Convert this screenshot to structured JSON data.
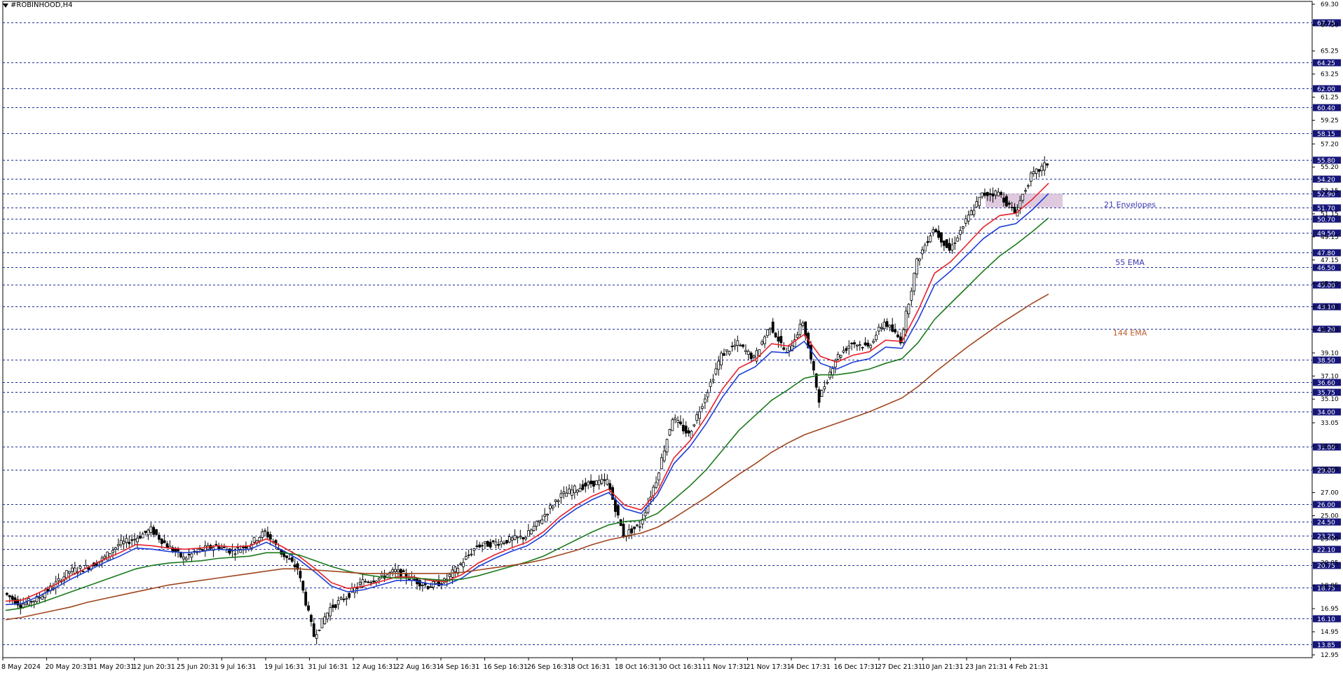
{
  "window": {
    "title": "#ROBINHOOD,H4"
  },
  "chart_data": {
    "type": "line",
    "symbol": "#ROBINHOOD",
    "timeframe": "H4",
    "ylim": [
      12.95,
      69.3
    ],
    "grid": "horizontal dashed at level lines",
    "axis_ticks": [
      "69.30",
      "67.50",
      "65.25",
      "63.25",
      "61.25",
      "59.25",
      "57.20",
      "55.20",
      "53.15",
      "51.15",
      "49.15",
      "47.15",
      "45.10",
      "43.10",
      "41.10",
      "39.10",
      "37.10",
      "35.10",
      "33.05",
      "31.05",
      "29.05",
      "27.00",
      "25.00",
      "23.00",
      "20.95",
      "18.95",
      "16.95",
      "14.95",
      "12.95"
    ],
    "level_labels": [
      "67.75",
      "64.25",
      "62.00",
      "60.40",
      "58.15",
      "55.80",
      "54.20",
      "52.90",
      "51.70",
      "50.70",
      "49.50",
      "47.80",
      "46.50",
      "45.00",
      "43.10",
      "41.20",
      "38.50",
      "36.60",
      "35.75",
      "34.00",
      "31.00",
      "29.00",
      "26.00",
      "24.50",
      "23.25",
      "22.10",
      "20.75",
      "18.75",
      "16.10",
      "13.85"
    ],
    "x_labels": [
      "8 May 2024",
      "20 May 20:31",
      "31 May 20:31",
      "12 Jun 20:31",
      "25 Jun 20:31",
      "9 Jul 16:31",
      "19 Jul 16:31",
      "31 Jul 16:31",
      "12 Aug 16:31",
      "22 Aug 16:31",
      "4 Sep 16:31",
      "16 Sep 16:31",
      "26 Sep 16:31",
      "8 Oct 16:31",
      "18 Oct 16:31",
      "30 Oct 16:31",
      "11 Nov 17:31",
      "21 Nov 17:31",
      "4 Dec 17:31",
      "16 Dec 17:31",
      "27 Dec 21:31",
      "10 Jan 21:31",
      "23 Jan 21:31",
      "4 Feb 21:31"
    ],
    "annotations": [
      {
        "text": "21 Envelopes",
        "y": 51.9,
        "color": "#3a3ab0"
      },
      {
        "text": "55 EMA",
        "y": 46.9,
        "color": "#3a3ab0"
      },
      {
        "text": "144 EMA",
        "y": 40.8,
        "color": "#b85a2a"
      }
    ],
    "zone": {
      "y_low": 51.7,
      "y_high": 52.9,
      "color": "#d8bfd8"
    },
    "price_path": [
      [
        0,
        18.3
      ],
      [
        1,
        17.3
      ],
      [
        2,
        17.8
      ],
      [
        3,
        18.9
      ],
      [
        4,
        20.2
      ],
      [
        5,
        20.5
      ],
      [
        6,
        21.2
      ],
      [
        7,
        22.5
      ],
      [
        8,
        23.0
      ],
      [
        9,
        23.8
      ],
      [
        10,
        22.4
      ],
      [
        11,
        21.3
      ],
      [
        12,
        22.0
      ],
      [
        13,
        22.4
      ],
      [
        14,
        21.9
      ],
      [
        15,
        22.5
      ],
      [
        16,
        23.6
      ],
      [
        17,
        21.8
      ],
      [
        18,
        20.4
      ],
      [
        19,
        14.6
      ],
      [
        20,
        17.0
      ],
      [
        21,
        18.0
      ],
      [
        22,
        19.3
      ],
      [
        23,
        19.6
      ],
      [
        24,
        20.2
      ],
      [
        25,
        19.5
      ],
      [
        26,
        18.9
      ],
      [
        27,
        19.3
      ],
      [
        28,
        20.8
      ],
      [
        29,
        22.4
      ],
      [
        30,
        22.6
      ],
      [
        31,
        22.9
      ],
      [
        32,
        23.2
      ],
      [
        33,
        24.8
      ],
      [
        34,
        26.6
      ],
      [
        35,
        27.3
      ],
      [
        36,
        27.8
      ],
      [
        37,
        28.0
      ],
      [
        38,
        23.3
      ],
      [
        39,
        24.2
      ],
      [
        40,
        28.1
      ],
      [
        41,
        33.5
      ],
      [
        42,
        32.0
      ],
      [
        43,
        35.3
      ],
      [
        44,
        38.9
      ],
      [
        45,
        39.9
      ],
      [
        46,
        38.6
      ],
      [
        47,
        41.5
      ],
      [
        48,
        39.0
      ],
      [
        49,
        41.8
      ],
      [
        50,
        35.1
      ],
      [
        51,
        38.6
      ],
      [
        52,
        40.0
      ],
      [
        53,
        39.6
      ],
      [
        54,
        41.8
      ],
      [
        55,
        40.2
      ],
      [
        56,
        47.0
      ],
      [
        57,
        49.9
      ],
      [
        58,
        48.0
      ],
      [
        59,
        50.5
      ],
      [
        60,
        52.8
      ],
      [
        61,
        53.0
      ],
      [
        62,
        51.2
      ],
      [
        63,
        54.4
      ],
      [
        64,
        55.5
      ]
    ],
    "series": [
      {
        "name": "21 Envelopes",
        "color": "#e8202a",
        "values": [
          17.6,
          17.7,
          18.3,
          19.0,
          19.8,
          20.5,
          21.2,
          21.8,
          22.5,
          22.4,
          22.2,
          22.1,
          22.2,
          22.4,
          22.3,
          22.4,
          23.0,
          22.3,
          21.5,
          20.4,
          19.2,
          18.7,
          18.9,
          19.3,
          19.7,
          19.7,
          19.4,
          19.3,
          19.9,
          20.9,
          21.6,
          22.2,
          22.7,
          23.6,
          24.9,
          25.9,
          26.7,
          27.3,
          25.9,
          25.5,
          27.1,
          30.0,
          31.5,
          33.6,
          36.0,
          37.8,
          38.5,
          39.9,
          39.7,
          40.7,
          38.8,
          38.3,
          38.9,
          39.2,
          40.2,
          40.1,
          42.8,
          46.0,
          47.0,
          48.5,
          50.0,
          51.0,
          51.2,
          52.4,
          53.8
        ]
      },
      {
        "name": "21 Envelopes",
        "color": "#1f3fd6",
        "values": [
          17.3,
          17.4,
          18.0,
          18.7,
          19.5,
          20.2,
          20.9,
          21.5,
          22.2,
          22.1,
          21.9,
          21.8,
          21.9,
          22.1,
          22.0,
          22.1,
          22.7,
          22.0,
          21.2,
          20.1,
          18.9,
          18.4,
          18.6,
          19.0,
          19.4,
          19.4,
          19.1,
          19.0,
          19.6,
          20.6,
          21.3,
          21.9,
          22.4,
          23.3,
          24.6,
          25.6,
          26.4,
          27.0,
          25.6,
          25.2,
          26.8,
          29.5,
          31.0,
          33.0,
          35.3,
          37.2,
          37.9,
          39.2,
          39.1,
          40.1,
          38.2,
          37.7,
          38.3,
          38.6,
          39.6,
          39.5,
          42.0,
          45.0,
          46.2,
          47.6,
          49.0,
          50.0,
          50.3,
          51.5,
          52.9
        ]
      },
      {
        "name": "55 EMA",
        "color": "#1a7a1a",
        "values": [
          16.8,
          17.0,
          17.4,
          17.9,
          18.4,
          18.9,
          19.4,
          19.9,
          20.4,
          20.7,
          20.9,
          21.0,
          21.1,
          21.3,
          21.4,
          21.5,
          21.8,
          21.8,
          21.6,
          21.1,
          20.6,
          20.2,
          19.9,
          19.7,
          19.6,
          19.6,
          19.5,
          19.4,
          19.5,
          19.8,
          20.2,
          20.6,
          21.0,
          21.5,
          22.2,
          22.9,
          23.6,
          24.2,
          24.5,
          24.6,
          25.2,
          26.4,
          27.6,
          29.0,
          30.7,
          32.4,
          33.7,
          35.0,
          35.9,
          36.9,
          37.2,
          37.2,
          37.4,
          37.7,
          38.2,
          38.6,
          40.0,
          42.0,
          43.4,
          44.8,
          46.2,
          47.5,
          48.5,
          49.6,
          50.8
        ]
      },
      {
        "name": "144 EMA",
        "color": "#a0461e",
        "values": [
          16.0,
          16.2,
          16.5,
          16.8,
          17.1,
          17.5,
          17.8,
          18.1,
          18.4,
          18.7,
          19.0,
          19.2,
          19.4,
          19.6,
          19.8,
          20.0,
          20.2,
          20.4,
          20.4,
          20.3,
          20.2,
          20.1,
          20.0,
          20.0,
          20.0,
          20.0,
          20.0,
          20.0,
          20.1,
          20.3,
          20.5,
          20.7,
          20.9,
          21.2,
          21.6,
          22.0,
          22.5,
          22.9,
          23.2,
          23.5,
          24.0,
          24.8,
          25.7,
          26.6,
          27.6,
          28.6,
          29.5,
          30.5,
          31.3,
          32.0,
          32.5,
          33.0,
          33.5,
          34.0,
          34.6,
          35.2,
          36.2,
          37.4,
          38.5,
          39.6,
          40.6,
          41.6,
          42.5,
          43.4,
          44.2
        ]
      }
    ]
  }
}
